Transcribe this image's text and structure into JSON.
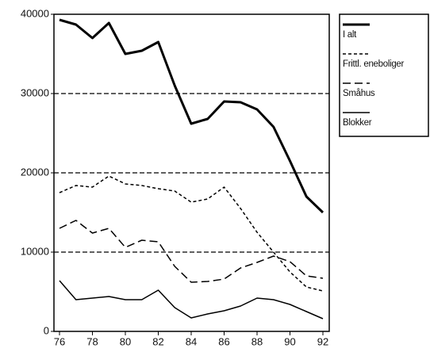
{
  "chart_data": {
    "type": "line",
    "x": [
      76,
      77,
      78,
      79,
      80,
      81,
      82,
      83,
      84,
      85,
      86,
      87,
      88,
      89,
      90,
      91,
      92
    ],
    "xlim": [
      76,
      92
    ],
    "xticks": [
      76,
      78,
      80,
      82,
      84,
      86,
      88,
      90,
      92
    ],
    "ylim": [
      0,
      40000
    ],
    "yticks": [
      0,
      10000,
      20000,
      30000,
      40000
    ],
    "grid": true,
    "legend": "right",
    "series": [
      {
        "name": "I alt",
        "color": "#000000",
        "line_width": 3,
        "dash": "none",
        "values": [
          39300,
          38700,
          37000,
          38900,
          35000,
          35400,
          36500,
          31000,
          26200,
          26800,
          29000,
          28900,
          28000,
          25800,
          21500,
          17000,
          15000
        ]
      },
      {
        "name": "Frittl. eneboliger",
        "color": "#000000",
        "line_width": 1.5,
        "dash": "4,3",
        "values": [
          17500,
          18400,
          18200,
          19600,
          18600,
          18400,
          18000,
          17700,
          16300,
          16700,
          18200,
          15500,
          12500,
          10000,
          7500,
          5600,
          5100
        ]
      },
      {
        "name": "Småhus",
        "color": "#000000",
        "line_width": 1.5,
        "dash": "10,5",
        "values": [
          13000,
          14000,
          12400,
          13000,
          10600,
          11500,
          11300,
          8200,
          6200,
          6300,
          6600,
          8000,
          8700,
          9500,
          8800,
          7000,
          6700
        ]
      },
      {
        "name": "Blokker",
        "color": "#000000",
        "line_width": 1.5,
        "dash": "none",
        "values": [
          6400,
          4000,
          4200,
          4400,
          4000,
          4000,
          5200,
          3000,
          1700,
          2200,
          2600,
          3200,
          4200,
          4000,
          3400,
          2500,
          1600
        ]
      }
    ]
  }
}
